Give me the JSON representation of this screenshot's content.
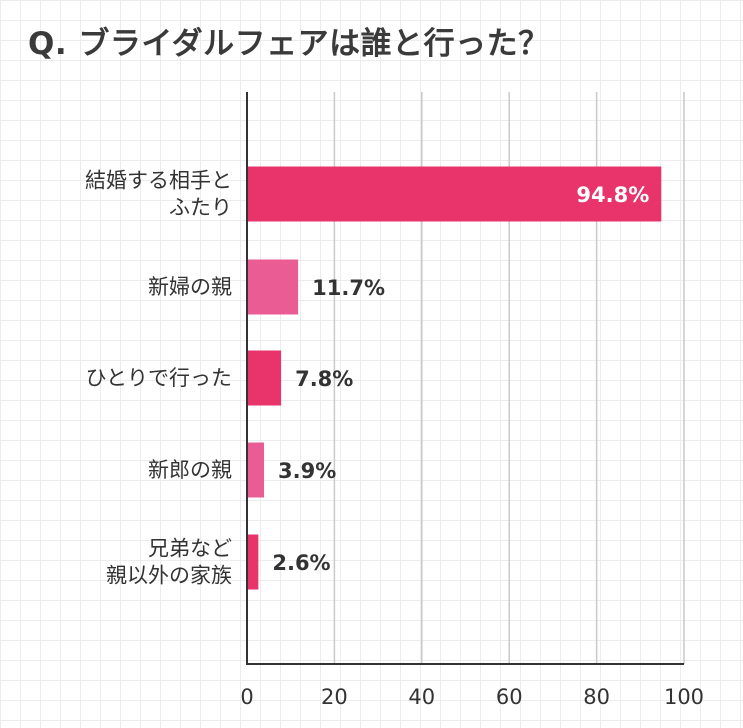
{
  "chart_data": {
    "type": "bar",
    "orientation": "horizontal",
    "title": "Q. ブライダルフェアは誰と行った？",
    "categories": [
      [
        "結婚する相手と",
        "ふたり"
      ],
      [
        "新婦の親"
      ],
      [
        "ひとりで行った"
      ],
      [
        "新郎の親"
      ],
      [
        "兄弟など",
        "親以外の家族"
      ]
    ],
    "values": [
      94.8,
      11.7,
      7.8,
      3.9,
      2.6
    ],
    "value_labels": [
      "94.8%",
      "11.7%",
      "7.8%",
      "3.9%",
      "2.6%"
    ],
    "xlim": [
      0,
      100
    ],
    "xticks": [
      0,
      20,
      40,
      60,
      80,
      100
    ],
    "xtick_labels": [
      "0",
      "20",
      "40",
      "60",
      "80",
      "100"
    ],
    "grid": true,
    "bar_colors": [
      "#e8336b",
      "#e95d94",
      "#e8336b",
      "#e95d94",
      "#e8336b"
    ]
  }
}
